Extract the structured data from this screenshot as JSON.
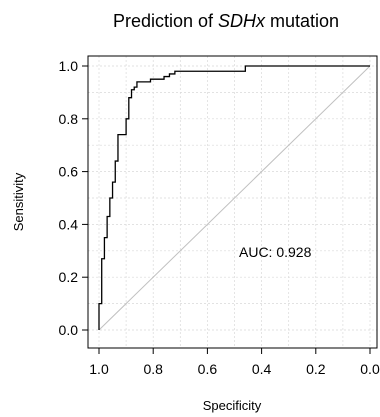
{
  "chart_data": {
    "type": "line",
    "title": {
      "prefix": "Prediction of ",
      "gene": "SDHx",
      "suffix": " mutation"
    },
    "xlabel": "Specificity",
    "ylabel": "Sensitivity",
    "xlim": [
      1.0,
      0.0
    ],
    "ylim": [
      0.0,
      1.0
    ],
    "x_reversed": true,
    "grid": true,
    "x_ticks": [
      1.0,
      0.8,
      0.6,
      0.4,
      0.2,
      0.0
    ],
    "x_tick_labels": [
      "1.0",
      "0.8",
      "0.6",
      "0.4",
      "0.2",
      "0.0"
    ],
    "y_ticks": [
      0.0,
      0.2,
      0.4,
      0.6,
      0.8,
      1.0
    ],
    "y_tick_labels": [
      "0.0",
      "0.2",
      "0.4",
      "0.6",
      "0.8",
      "1.0"
    ],
    "annotation": "AUC: 0.928",
    "reference_line": {
      "specificity": [
        1.0,
        0.0
      ],
      "sensitivity": [
        0.0,
        1.0
      ],
      "color": "#c0c0c0"
    },
    "series": [
      {
        "color": "#000000",
        "specificity": [
          1.0,
          1.0,
          0.99,
          0.99,
          0.98,
          0.98,
          0.97,
          0.97,
          0.96,
          0.96,
          0.95,
          0.95,
          0.94,
          0.94,
          0.93,
          0.93,
          0.9,
          0.9,
          0.89,
          0.89,
          0.88,
          0.88,
          0.87,
          0.87,
          0.86,
          0.86,
          0.81,
          0.81,
          0.76,
          0.76,
          0.74,
          0.74,
          0.72,
          0.72,
          0.46,
          0.46,
          0.0
        ],
        "sensitivity": [
          0.0,
          0.1,
          0.1,
          0.27,
          0.27,
          0.35,
          0.35,
          0.43,
          0.43,
          0.5,
          0.5,
          0.56,
          0.56,
          0.64,
          0.64,
          0.74,
          0.74,
          0.8,
          0.8,
          0.88,
          0.88,
          0.91,
          0.91,
          0.92,
          0.92,
          0.94,
          0.94,
          0.95,
          0.95,
          0.96,
          0.96,
          0.97,
          0.97,
          0.98,
          0.98,
          1.0,
          1.0
        ]
      }
    ]
  }
}
